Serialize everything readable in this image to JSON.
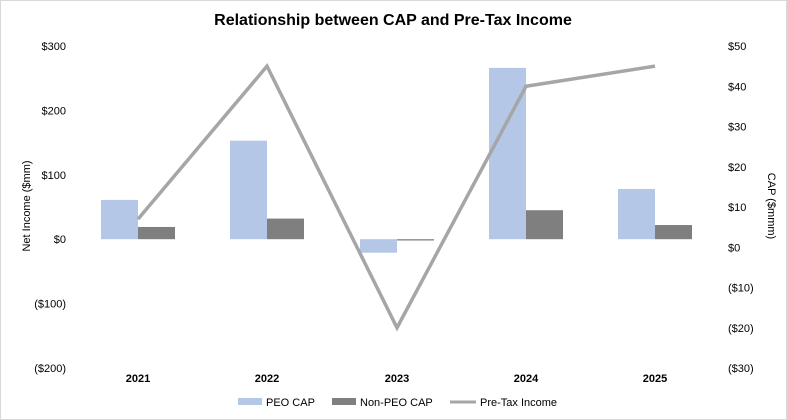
{
  "chart_data": {
    "type": "bar+line",
    "title": "Relationship between CAP and Pre-Tax Income",
    "categories": [
      "2021",
      "2022",
      "2023",
      "2024",
      "2025"
    ],
    "left_axis": {
      "label": "Net Income ($mm)",
      "ticks": [
        "$300",
        "$200",
        "$100",
        "$0",
        "($100)",
        "($200)"
      ],
      "tick_values": [
        300,
        200,
        100,
        0,
        -100,
        -200
      ],
      "range": [
        -200,
        300
      ]
    },
    "right_axis": {
      "label": "CAP ($mmm)",
      "ticks": [
        "$50",
        "$40",
        "$30",
        "$20",
        "$10",
        "$0",
        "($10)",
        "($20)",
        "($30)"
      ],
      "tick_values": [
        50,
        40,
        30,
        20,
        10,
        0,
        -10,
        -20,
        -30
      ],
      "range": [
        -30,
        50
      ]
    },
    "series": [
      {
        "name": "PEO CAP",
        "type": "bar",
        "axis": "left",
        "color": "#b4c7e7",
        "values": [
          61,
          153,
          -21,
          266,
          78
        ]
      },
      {
        "name": "Non-PEO CAP",
        "type": "bar",
        "axis": "left",
        "color": "#7f7f7f",
        "values": [
          19,
          32,
          -2,
          45,
          22
        ]
      },
      {
        "name": "Pre-Tax Income",
        "type": "line",
        "axis": "right",
        "color": "#a6a6a6",
        "values": [
          7,
          45,
          -20,
          40,
          45
        ]
      }
    ],
    "legend_position": "bottom"
  }
}
